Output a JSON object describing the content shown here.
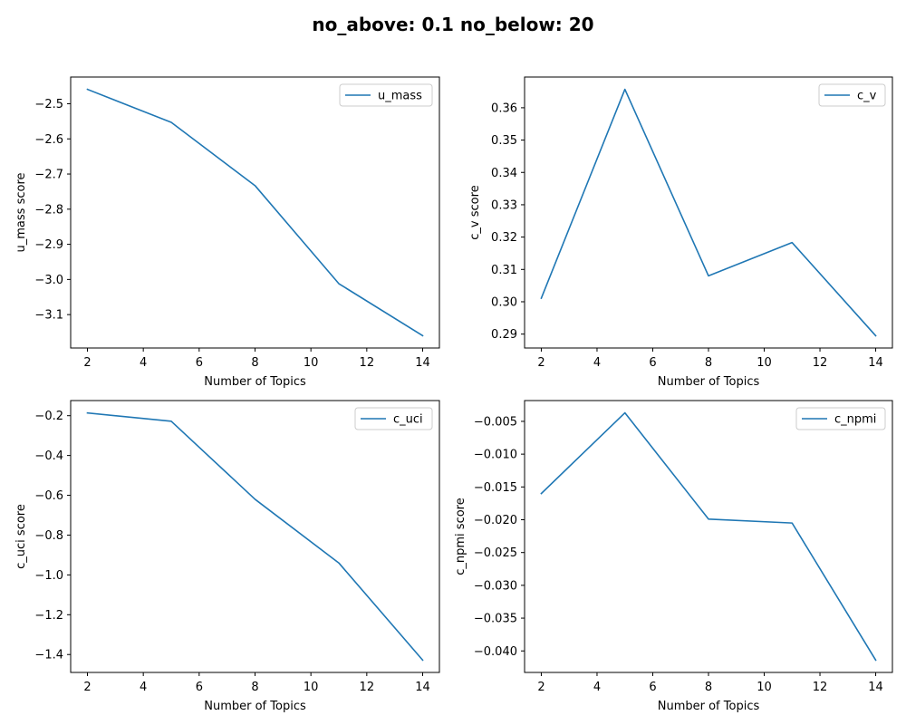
{
  "figure_title": "no_above: 0.1 no_below: 20",
  "colors": {
    "series": "#1f77b4"
  },
  "chart_data": [
    {
      "type": "line",
      "title": "",
      "xlabel": "Number of Topics",
      "ylabel": "u_mass score",
      "x": [
        2,
        5,
        8,
        11,
        14
      ],
      "series": [
        {
          "name": "u_mass",
          "values": [
            -2.459,
            -2.553,
            -2.733,
            -3.012,
            -3.16
          ]
        }
      ],
      "xlim": [
        1.4,
        14.6
      ],
      "ylim": [
        -3.195,
        -2.424
      ],
      "xticks": [
        2,
        4,
        6,
        8,
        10,
        12,
        14
      ],
      "xtick_labels": [
        "2",
        "4",
        "6",
        "8",
        "10",
        "12",
        "14"
      ],
      "yticks": [
        -2.5,
        -2.6,
        -2.7,
        -2.8,
        -2.9,
        -3.0,
        -3.1
      ],
      "ytick_labels": [
        "−2.5",
        "−2.6",
        "−2.7",
        "−2.8",
        "−2.9",
        "−3.0",
        "−3.1"
      ],
      "legend": "top-right",
      "grid": false
    },
    {
      "type": "line",
      "title": "",
      "xlabel": "Number of Topics",
      "ylabel": "c_v score",
      "x": [
        2,
        5,
        8,
        11,
        14
      ],
      "series": [
        {
          "name": "c_v",
          "values": [
            0.3011,
            0.3657,
            0.308,
            0.3183,
            0.2895
          ]
        }
      ],
      "xlim": [
        1.4,
        14.6
      ],
      "ylim": [
        0.2857,
        0.3695
      ],
      "xticks": [
        2,
        4,
        6,
        8,
        10,
        12,
        14
      ],
      "xtick_labels": [
        "2",
        "4",
        "6",
        "8",
        "10",
        "12",
        "14"
      ],
      "yticks": [
        0.29,
        0.3,
        0.31,
        0.32,
        0.33,
        0.34,
        0.35,
        0.36
      ],
      "ytick_labels": [
        "0.29",
        "0.30",
        "0.31",
        "0.32",
        "0.33",
        "0.34",
        "0.35",
        "0.36"
      ],
      "legend": "top-right",
      "grid": false
    },
    {
      "type": "line",
      "title": "",
      "xlabel": "Number of Topics",
      "ylabel": "c_uci score",
      "x": [
        2,
        5,
        8,
        11,
        14
      ],
      "series": [
        {
          "name": "c_uci",
          "values": [
            -0.186,
            -0.228,
            -0.62,
            -0.94,
            -1.428
          ]
        }
      ],
      "xlim": [
        1.4,
        14.6
      ],
      "ylim": [
        -1.49,
        -0.124
      ],
      "xticks": [
        2,
        4,
        6,
        8,
        10,
        12,
        14
      ],
      "xtick_labels": [
        "2",
        "4",
        "6",
        "8",
        "10",
        "12",
        "14"
      ],
      "yticks": [
        -0.2,
        -0.4,
        -0.6,
        -0.8,
        -1.0,
        -1.2,
        -1.4
      ],
      "ytick_labels": [
        "−0.2",
        "−0.4",
        "−0.6",
        "−0.8",
        "−1.0",
        "−1.2",
        "−1.4"
      ],
      "legend": "top-right",
      "grid": false
    },
    {
      "type": "line",
      "title": "",
      "xlabel": "Number of Topics",
      "ylabel": "c_npmi score",
      "x": [
        2,
        5,
        8,
        11,
        14
      ],
      "series": [
        {
          "name": "c_npmi",
          "values": [
            -0.016,
            -0.0037,
            -0.0199,
            -0.0205,
            -0.0414
          ]
        }
      ],
      "xlim": [
        1.4,
        14.6
      ],
      "ylim": [
        -0.04328,
        -0.00183
      ],
      "xticks": [
        2,
        4,
        6,
        8,
        10,
        12,
        14
      ],
      "xtick_labels": [
        "2",
        "4",
        "6",
        "8",
        "10",
        "12",
        "14"
      ],
      "yticks": [
        -0.005,
        -0.01,
        -0.015,
        -0.02,
        -0.025,
        -0.03,
        -0.035,
        -0.04
      ],
      "ytick_labels": [
        "−0.005",
        "−0.010",
        "−0.015",
        "−0.020",
        "−0.025",
        "−0.030",
        "−0.035",
        "−0.040"
      ],
      "legend": "top-right",
      "grid": false
    }
  ]
}
